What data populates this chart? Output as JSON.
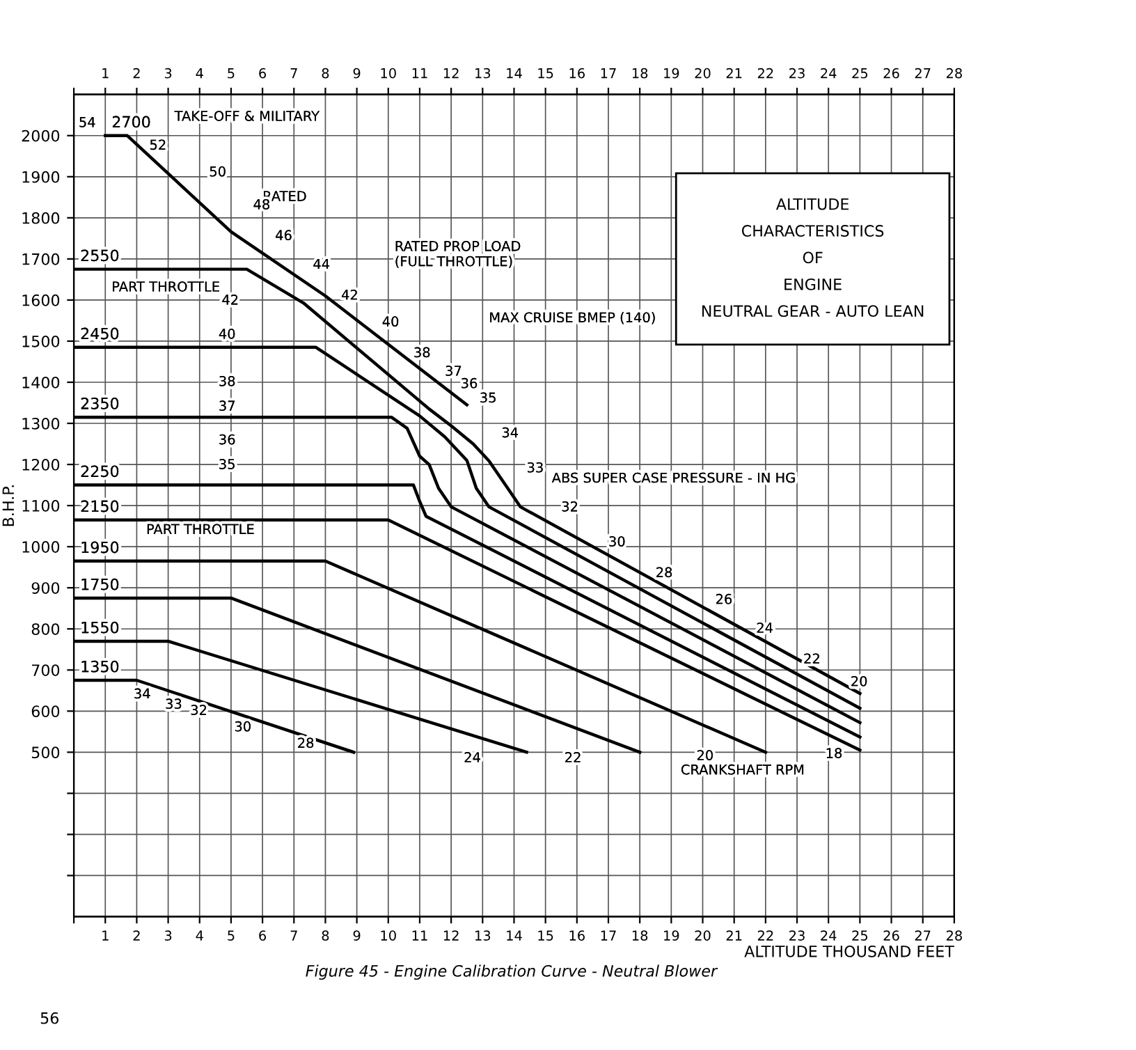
{
  "chart_data": {
    "type": "line",
    "title": "Figure 45 - Engine Calibration Curve - Neutral Blower",
    "xlabel": "ALTITUDE THOUSAND FEET",
    "ylabel": "B.H.P.",
    "xlim": [
      0,
      28
    ],
    "ylim": [
      100,
      2100
    ],
    "xticks": [
      {
        "value": 0,
        "label": null
      },
      1,
      2,
      3,
      4,
      5,
      6,
      7,
      8,
      9,
      10,
      11,
      12,
      13,
      14,
      15,
      16,
      17,
      18,
      19,
      20,
      21,
      22,
      23,
      24,
      25,
      26,
      27,
      28
    ],
    "x2lim": [
      0,
      28
    ],
    "x2ticks": [
      {
        "value": 0,
        "label": null
      },
      1,
      2,
      3,
      4,
      5,
      6,
      7,
      8,
      9,
      10,
      11,
      12,
      13,
      14,
      15,
      16,
      17,
      18,
      19,
      20,
      21,
      22,
      23,
      24,
      25,
      26,
      27,
      28
    ],
    "yticks": [
      {
        "value": 200,
        "label": null
      },
      {
        "value": 300,
        "label": null
      },
      {
        "value": 400,
        "label": null
      },
      500,
      600,
      700,
      800,
      900,
      1000,
      1100,
      1200,
      1300,
      1400,
      1500,
      1600,
      1700,
      1800,
      1900,
      2000
    ],
    "grid": true,
    "legend": false,
    "marker": "none",
    "line_style": "solid",
    "series": [
      {
        "name": "2700",
        "color": "#000000",
        "x": [
          1.0,
          1.7,
          5.0,
          8.0,
          12.5
        ],
        "values": [
          2000,
          2000,
          1766,
          1610,
          1345
        ]
      },
      {
        "name": "2550",
        "color": "#000000",
        "x": [
          0,
          5.5,
          7.3,
          11.3,
          12.0,
          12.7,
          13.2,
          13.8,
          14.2,
          25
        ],
        "values": [
          1675,
          1675,
          1593,
          1335,
          1294,
          1250,
          1209,
          1142,
          1097,
          643
        ]
      },
      {
        "name": "2450",
        "color": "#000000",
        "x": [
          0,
          7.7,
          11.0,
          11.8,
          12.5,
          12.8,
          13.2,
          25
        ],
        "values": [
          1485,
          1485,
          1318,
          1267,
          1210,
          1142,
          1097,
          607
        ]
      },
      {
        "name": "2350",
        "color": "#000000",
        "x": [
          0,
          10.1,
          10.6,
          11.0,
          11.3,
          11.6,
          12.0,
          25
        ],
        "values": [
          1315,
          1315,
          1288,
          1220,
          1200,
          1142,
          1097,
          572
        ]
      },
      {
        "name": "2250",
        "color": "#000000",
        "x": [
          0,
          10.8,
          11.0,
          11.2,
          25
        ],
        "values": [
          1150,
          1150,
          1110,
          1074,
          537
        ]
      },
      {
        "name": "2150",
        "color": "#000000",
        "x": [
          0,
          10.0,
          25
        ],
        "values": [
          1065,
          1065,
          505
        ]
      },
      {
        "name": "1950",
        "color": "#000000",
        "x": [
          0,
          8.0,
          22
        ],
        "values": [
          965,
          965,
          500
        ]
      },
      {
        "name": "1750",
        "color": "#000000",
        "x": [
          0,
          5.0,
          18
        ],
        "values": [
          875,
          875,
          500
        ]
      },
      {
        "name": "1550",
        "color": "#000000",
        "x": [
          0,
          3.0,
          14.4
        ],
        "values": [
          770,
          770,
          500
        ]
      },
      {
        "name": "1350",
        "color": "#000000",
        "x": [
          0,
          2.0,
          8.9
        ],
        "values": [
          675,
          675,
          500
        ]
      }
    ],
    "annotations": [
      "TAKE-OFF & MILITARY",
      "RATED",
      "RATED PROP LOAD\n(FULL THROTTLE)",
      "MAX CRUISE BMEP (140)",
      "ABS SUPER CASE PRESSURE - IN HG",
      "PART THROTTLE",
      "PART THROTTLE",
      "CRANKSHAFT RPM",
      "54",
      "52",
      "50",
      "48",
      "46",
      "44",
      "42",
      "40",
      "38",
      "37",
      "36",
      "35",
      "34",
      "33",
      "32",
      "30",
      "28",
      "26",
      "24",
      "22",
      "20",
      "42",
      "40",
      "38",
      "37",
      "36",
      "35",
      "34",
      "33",
      "32",
      "30",
      "28",
      "24",
      "22",
      "20",
      "18",
      "ALTITUDE\nCHARACTERISTICS\nOF\nENGINE\nNEUTRAL GEAR - AUTO LEAN",
      "56"
    ]
  }
}
